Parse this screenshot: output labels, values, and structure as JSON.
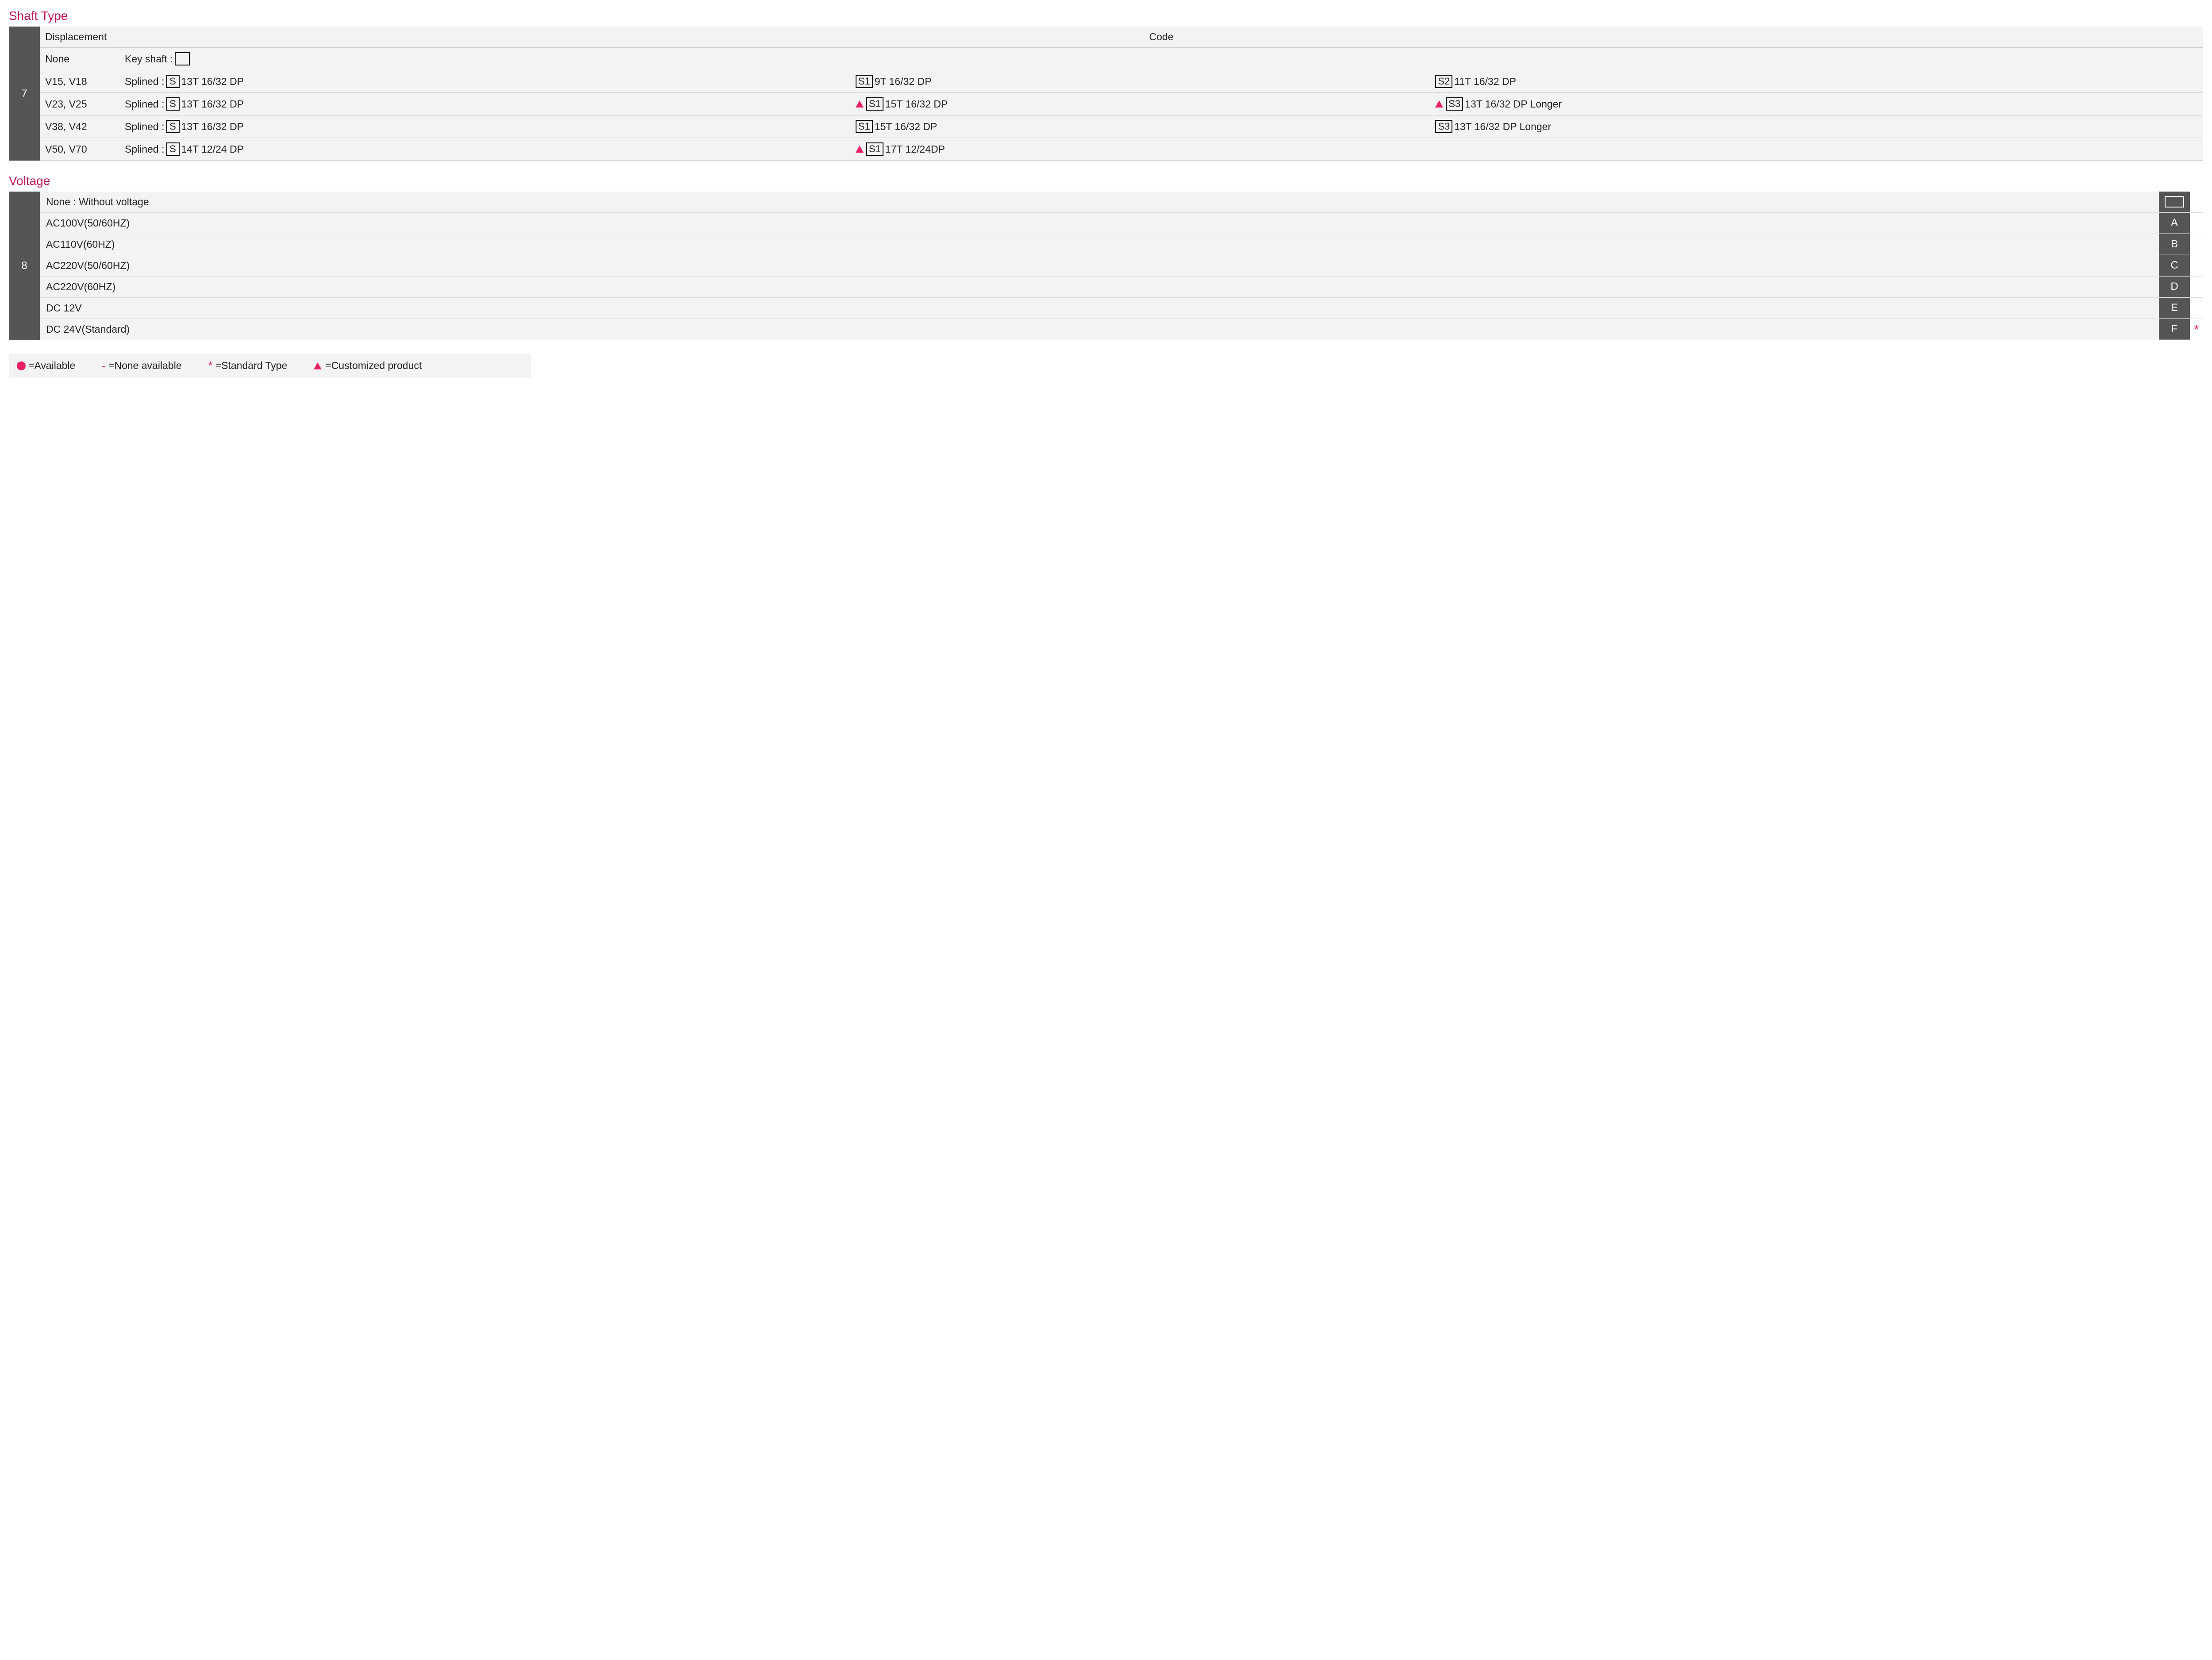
{
  "colors": {
    "accent": "#c2185b",
    "pink": "#e91e63",
    "idx_bg": "#555555",
    "row_bg": "#f3f3f3",
    "border": "#cccccc"
  },
  "shaft": {
    "title": "Shaft Type",
    "index": "7",
    "headers": {
      "displacement": "Displacement",
      "code": "Code"
    },
    "rows": [
      {
        "displacement": "None",
        "cells": [
          {
            "prefix": "Key shaft :",
            "box": "",
            "suffix": "",
            "tri": false
          }
        ]
      },
      {
        "displacement": "V15, V18",
        "cells": [
          {
            "prefix": "Splined :",
            "box": "S",
            "suffix": "13T 16/32 DP",
            "tri": false
          },
          {
            "prefix": "",
            "box": "S1",
            "suffix": "9T 16/32 DP",
            "tri": false
          },
          {
            "prefix": "",
            "box": "S2",
            "suffix": "11T 16/32 DP",
            "tri": false
          }
        ]
      },
      {
        "displacement": "V23, V25",
        "cells": [
          {
            "prefix": "Splined :",
            "box": "S",
            "suffix": "13T 16/32 DP",
            "tri": false
          },
          {
            "prefix": "",
            "box": "S1",
            "suffix": "15T 16/32 DP",
            "tri": true
          },
          {
            "prefix": "",
            "box": "S3",
            "suffix": "13T 16/32 DP Longer",
            "tri": true
          }
        ]
      },
      {
        "displacement": "V38, V42",
        "cells": [
          {
            "prefix": "Splined :",
            "box": "S",
            "suffix": "13T 16/32 DP",
            "tri": false
          },
          {
            "prefix": "",
            "box": "S1",
            "suffix": "15T 16/32 DP",
            "tri": false
          },
          {
            "prefix": "",
            "box": "S3",
            "suffix": "13T 16/32 DP Longer",
            "tri": false
          }
        ]
      },
      {
        "displacement": "V50, V70",
        "cells": [
          {
            "prefix": "Splined :",
            "box": "S",
            "suffix": "14T 12/24 DP",
            "tri": false
          },
          {
            "prefix": "",
            "box": "S1",
            "suffix": "17T 12/24DP",
            "tri": true
          }
        ]
      }
    ]
  },
  "voltage": {
    "title": "Voltage",
    "index": "8",
    "rows": [
      {
        "label": "None : Without voltage",
        "code": "",
        "code_is_box": true,
        "star": false
      },
      {
        "label": "AC100V(50/60HZ)",
        "code": "A",
        "code_is_box": false,
        "star": false
      },
      {
        "label": "AC110V(60HZ)",
        "code": "B",
        "code_is_box": false,
        "star": false
      },
      {
        "label": "AC220V(50/60HZ)",
        "code": "C",
        "code_is_box": false,
        "star": false
      },
      {
        "label": "AC220V(60HZ)",
        "code": "D",
        "code_is_box": false,
        "star": false
      },
      {
        "label": "DC 12V",
        "code": "E",
        "code_is_box": false,
        "star": false
      },
      {
        "label": "DC 24V(Standard)",
        "code": "F",
        "code_is_box": false,
        "star": true
      }
    ]
  },
  "legend": {
    "available": "=Available",
    "none": " =None available",
    "standard": "=Standard Type",
    "custom": "=Customized product",
    "dash_symbol": "-",
    "star_symbol": "*"
  }
}
